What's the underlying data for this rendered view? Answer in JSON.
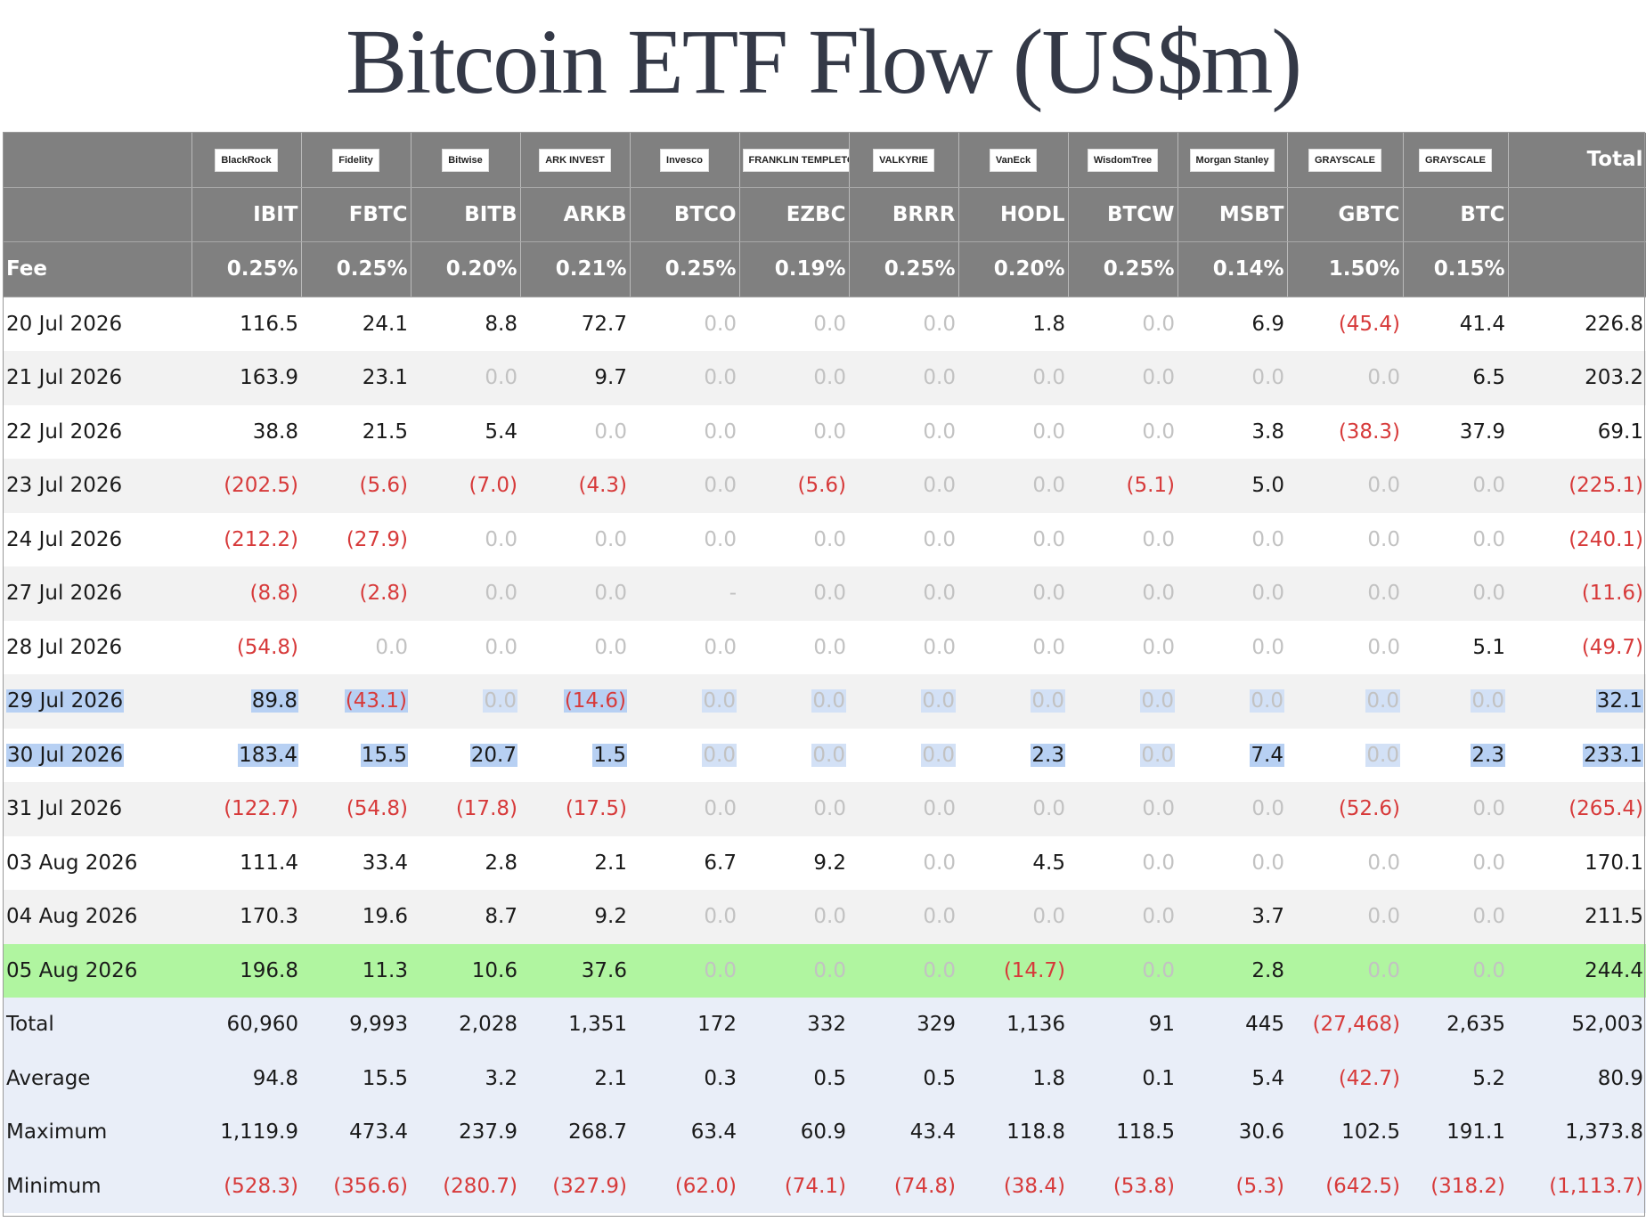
{
  "title": "Bitcoin ETF Flow (US$m)",
  "issuers": [
    {
      "logo": "BlackRock",
      "ticker": "IBIT",
      "fee": "0.25%"
    },
    {
      "logo": "Fidelity",
      "ticker": "FBTC",
      "fee": "0.25%"
    },
    {
      "logo": "Bitwise",
      "ticker": "BITB",
      "fee": "0.20%"
    },
    {
      "logo": "ARK INVEST",
      "ticker": "ARKB",
      "fee": "0.21%"
    },
    {
      "logo": "Invesco",
      "ticker": "BTCO",
      "fee": "0.25%"
    },
    {
      "logo": "FRANKLIN TEMPLETON",
      "ticker": "EZBC",
      "fee": "0.19%"
    },
    {
      "logo": "VALKYRIE",
      "ticker": "BRRR",
      "fee": "0.25%"
    },
    {
      "logo": "VanEck",
      "ticker": "HODL",
      "fee": "0.20%"
    },
    {
      "logo": "WisdomTree",
      "ticker": "BTCW",
      "fee": "0.25%"
    },
    {
      "logo": "Morgan Stanley",
      "ticker": "MSBT",
      "fee": "0.14%"
    },
    {
      "logo": "GRAYSCALE",
      "ticker": "GBTC",
      "fee": "1.50%"
    },
    {
      "logo": "GRAYSCALE",
      "ticker": "BTC",
      "fee": "0.15%"
    }
  ],
  "header": {
    "total_label": "Total",
    "fee_label": "Fee"
  },
  "rows": [
    {
      "date": "20 Jul 2026",
      "values": [
        "116.5",
        "24.1",
        "8.8",
        "72.7",
        "0.0",
        "0.0",
        "0.0",
        "1.8",
        "0.0",
        "6.9",
        "(45.4)",
        "41.4"
      ],
      "total": "226.8"
    },
    {
      "date": "21 Jul 2026",
      "values": [
        "163.9",
        "23.1",
        "0.0",
        "9.7",
        "0.0",
        "0.0",
        "0.0",
        "0.0",
        "0.0",
        "0.0",
        "0.0",
        "6.5"
      ],
      "total": "203.2"
    },
    {
      "date": "22 Jul 2026",
      "values": [
        "38.8",
        "21.5",
        "5.4",
        "0.0",
        "0.0",
        "0.0",
        "0.0",
        "0.0",
        "0.0",
        "3.8",
        "(38.3)",
        "37.9"
      ],
      "total": "69.1"
    },
    {
      "date": "23 Jul 2026",
      "values": [
        "(202.5)",
        "(5.6)",
        "(7.0)",
        "(4.3)",
        "0.0",
        "(5.6)",
        "0.0",
        "0.0",
        "(5.1)",
        "5.0",
        "0.0",
        "0.0"
      ],
      "total": "(225.1)"
    },
    {
      "date": "24 Jul 2026",
      "values": [
        "(212.2)",
        "(27.9)",
        "0.0",
        "0.0",
        "0.0",
        "0.0",
        "0.0",
        "0.0",
        "0.0",
        "0.0",
        "0.0",
        "0.0"
      ],
      "total": "(240.1)"
    },
    {
      "date": "27 Jul 2026",
      "values": [
        "(8.8)",
        "(2.8)",
        "0.0",
        "0.0",
        "-",
        "0.0",
        "0.0",
        "0.0",
        "0.0",
        "0.0",
        "0.0",
        "0.0"
      ],
      "total": "(11.6)"
    },
    {
      "date": "28 Jul 2026",
      "values": [
        "(54.8)",
        "0.0",
        "0.0",
        "0.0",
        "0.0",
        "0.0",
        "0.0",
        "0.0",
        "0.0",
        "0.0",
        "0.0",
        "5.1"
      ],
      "total": "(49.7)"
    },
    {
      "date": "29 Jul 2026",
      "values": [
        "89.8",
        "(43.1)",
        "0.0",
        "(14.6)",
        "0.0",
        "0.0",
        "0.0",
        "0.0",
        "0.0",
        "0.0",
        "0.0",
        "0.0"
      ],
      "total": "32.1",
      "selected": true
    },
    {
      "date": "30 Jul 2026",
      "values": [
        "183.4",
        "15.5",
        "20.7",
        "1.5",
        "0.0",
        "0.0",
        "0.0",
        "2.3",
        "0.0",
        "7.4",
        "0.0",
        "2.3"
      ],
      "total": "233.1",
      "selected": true
    },
    {
      "date": "31 Jul 2026",
      "values": [
        "(122.7)",
        "(54.8)",
        "(17.8)",
        "(17.5)",
        "0.0",
        "0.0",
        "0.0",
        "0.0",
        "0.0",
        "0.0",
        "(52.6)",
        "0.0"
      ],
      "total": "(265.4)"
    },
    {
      "date": "03 Aug 2026",
      "values": [
        "111.4",
        "33.4",
        "2.8",
        "2.1",
        "6.7",
        "9.2",
        "0.0",
        "4.5",
        "0.0",
        "0.0",
        "0.0",
        "0.0"
      ],
      "total": "170.1"
    },
    {
      "date": "04 Aug 2026",
      "values": [
        "170.3",
        "19.6",
        "8.7",
        "9.2",
        "0.0",
        "0.0",
        "0.0",
        "0.0",
        "0.0",
        "3.7",
        "0.0",
        "0.0"
      ],
      "total": "211.5"
    },
    {
      "date": "05 Aug 2026",
      "values": [
        "196.8",
        "11.3",
        "10.6",
        "37.6",
        "0.0",
        "0.0",
        "0.0",
        "(14.7)",
        "0.0",
        "2.8",
        "0.0",
        "0.0"
      ],
      "total": "244.4",
      "latest": true
    }
  ],
  "summary": [
    {
      "label": "Total",
      "values": [
        "60,960",
        "9,993",
        "2,028",
        "1,351",
        "172",
        "332",
        "329",
        "1,136",
        "91",
        "445",
        "(27,468)",
        "2,635"
      ],
      "total": "52,003"
    },
    {
      "label": "Average",
      "values": [
        "94.8",
        "15.5",
        "3.2",
        "2.1",
        "0.3",
        "0.5",
        "0.5",
        "1.8",
        "0.1",
        "5.4",
        "(42.7)",
        "5.2"
      ],
      "total": "80.9"
    },
    {
      "label": "Maximum",
      "values": [
        "1,119.9",
        "473.4",
        "237.9",
        "268.7",
        "63.4",
        "60.9",
        "43.4",
        "118.8",
        "118.5",
        "30.6",
        "102.5",
        "191.1"
      ],
      "total": "1,373.8"
    },
    {
      "label": "Minimum",
      "values": [
        "(528.3)",
        "(356.6)",
        "(280.7)",
        "(327.9)",
        "(62.0)",
        "(74.1)",
        "(74.8)",
        "(38.4)",
        "(53.8)",
        "(5.3)",
        "(642.5)",
        "(318.2)"
      ],
      "total": "(1,113.7)"
    }
  ],
  "colors": {
    "header_bg": "#808080",
    "negative": "#d73a3a",
    "zero": "#c2c2c2",
    "latest_row": "#b0f5a0",
    "summary_bg": "#e9eef8",
    "selection": "#b7d0f3"
  }
}
